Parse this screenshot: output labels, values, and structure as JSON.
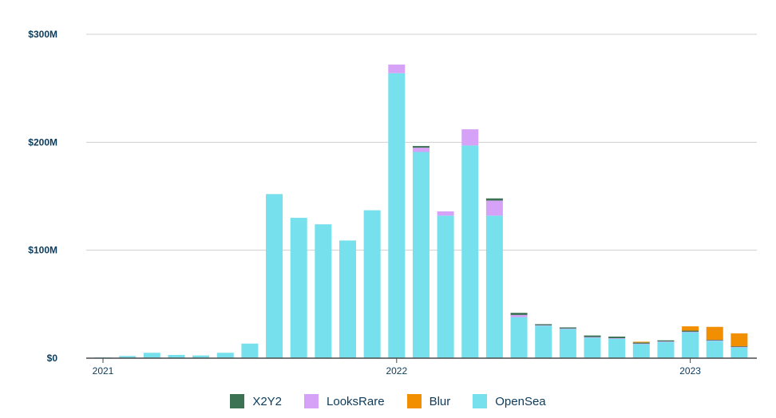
{
  "chart_data": {
    "type": "bar",
    "stacked": true,
    "categories": [
      "2021-01",
      "2021-02",
      "2021-03",
      "2021-04",
      "2021-05",
      "2021-06",
      "2021-07",
      "2021-08",
      "2021-09",
      "2021-10",
      "2021-11",
      "2021-12",
      "2022-01",
      "2022-02",
      "2022-03",
      "2022-04",
      "2022-05",
      "2022-06",
      "2022-07",
      "2022-08",
      "2022-09",
      "2022-10",
      "2022-11",
      "2022-12",
      "2023-01",
      "2023-02",
      "2023-03"
    ],
    "x_tick_labels": [
      {
        "category": "2021-01",
        "label": "2021"
      },
      {
        "category": "2022-01",
        "label": "2022"
      },
      {
        "category": "2023-01",
        "label": "2023"
      }
    ],
    "y_ticks": [
      {
        "value": 0,
        "label": "$0"
      },
      {
        "value": 100,
        "label": "$100M"
      },
      {
        "value": 200,
        "label": "$200M"
      },
      {
        "value": 300,
        "label": "$300M"
      }
    ],
    "ylim": [
      0,
      300
    ],
    "unit": "$M",
    "grid": true,
    "legend_position": "bottom",
    "series": [
      {
        "name": "OpenSea",
        "color": "#76e0ec",
        "values": [
          0.5,
          2,
          5,
          3,
          2.5,
          5,
          13.5,
          152,
          130,
          124,
          109,
          137,
          264,
          191,
          132,
          197,
          132,
          38,
          30,
          27,
          19,
          18,
          13,
          15,
          24,
          16,
          10
        ]
      },
      {
        "name": "LooksRare",
        "color": "#d5a2f7",
        "values": [
          0,
          0,
          0,
          0,
          0,
          0,
          0,
          0,
          0,
          0,
          0,
          0,
          8,
          4,
          4,
          15,
          14,
          2,
          0.5,
          0.5,
          0.5,
          0.5,
          0.5,
          0.5,
          0.5,
          0.5,
          0.5
        ]
      },
      {
        "name": "X2Y2",
        "color": "#3b7254",
        "values": [
          0,
          0,
          0,
          0,
          0,
          0,
          0,
          0,
          0,
          0,
          0,
          0,
          0,
          1.5,
          0,
          0,
          2,
          2,
          1,
          1,
          1.5,
          1.5,
          1,
          1,
          1,
          0.5,
          0.5
        ]
      },
      {
        "name": "Blur",
        "color": "#f28f00",
        "values": [
          0,
          0,
          0,
          0,
          0,
          0,
          0,
          0,
          0,
          0,
          0,
          0,
          0,
          0,
          0,
          0,
          0,
          0,
          0,
          0,
          0,
          0,
          0.5,
          0,
          4,
          12,
          12
        ]
      }
    ],
    "legend": [
      {
        "name": "X2Y2",
        "color": "#3b7254"
      },
      {
        "name": "LooksRare",
        "color": "#d5a2f7"
      },
      {
        "name": "Blur",
        "color": "#f28f00"
      },
      {
        "name": "OpenSea",
        "color": "#76e0ec"
      }
    ]
  }
}
